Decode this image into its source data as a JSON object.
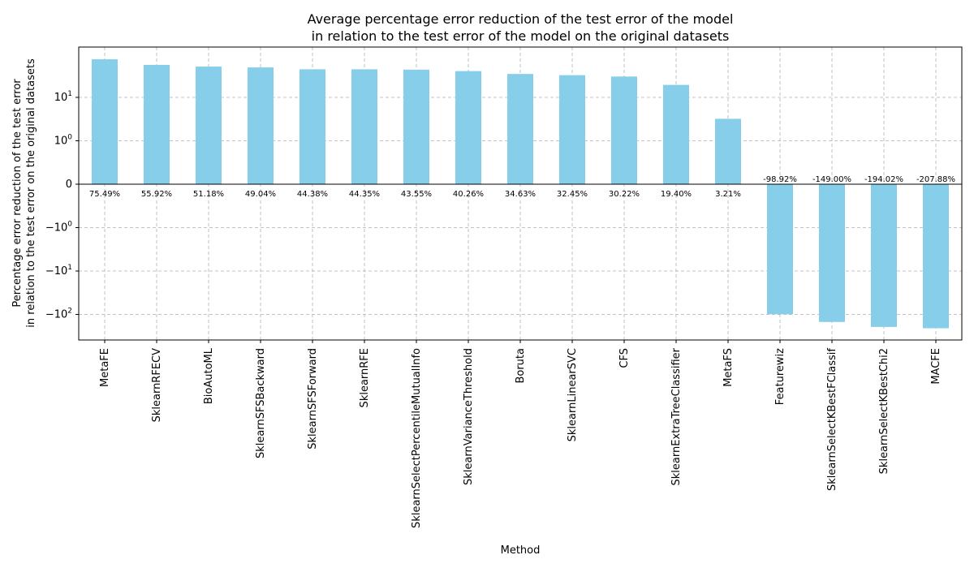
{
  "chart_data": {
    "type": "bar",
    "title": [
      "Average percentage error reduction of the test error of the model",
      "in relation to the test error of the model on the original datasets"
    ],
    "xlabel": "Method",
    "ylabel": [
      "Percentage error reduction of the test error",
      "in relation to the test error on the original datasets"
    ],
    "yscale": "symlog",
    "grid": true,
    "bar_color": "#87ceeb",
    "categories": [
      "MetaFE",
      "SklearnRFECV",
      "BioAutoML",
      "SklearnSFSBackward",
      "SklearnSFSForward",
      "SklearnRFE",
      "SklearnSelectPercentileMutualInfo",
      "SklearnVarianceThreshold",
      "Boruta",
      "SklearnLinearSVC",
      "CFS",
      "SklearnExtraTreeClassifier",
      "MetaFS",
      "Featurewiz",
      "SklearnSelectKBestFClassif",
      "SklearnSelectKBestChi2",
      "MACFE"
    ],
    "values": [
      75.49,
      55.92,
      51.18,
      49.04,
      44.38,
      44.35,
      43.55,
      40.26,
      34.63,
      32.45,
      30.22,
      19.4,
      3.21,
      -98.92,
      -149.0,
      -194.02,
      -207.88
    ],
    "value_labels": [
      "75.49%",
      "55.92%",
      "51.18%",
      "49.04%",
      "44.38%",
      "44.35%",
      "43.55%",
      "40.26%",
      "34.63%",
      "32.45%",
      "30.22%",
      "19.40%",
      "3.21%",
      "-98.92%",
      "-149.00%",
      "-194.02%",
      "-207.88%"
    ],
    "yticks": [
      {
        "value": 10,
        "base": "10",
        "exp": "1"
      },
      {
        "value": 1,
        "base": "10",
        "exp": "0"
      },
      {
        "value": 0,
        "base": "0",
        "exp": ""
      },
      {
        "value": -1,
        "base": "−10",
        "exp": "0"
      },
      {
        "value": -10,
        "base": "−10",
        "exp": "1"
      },
      {
        "value": -100,
        "base": "−10",
        "exp": "2"
      }
    ]
  }
}
